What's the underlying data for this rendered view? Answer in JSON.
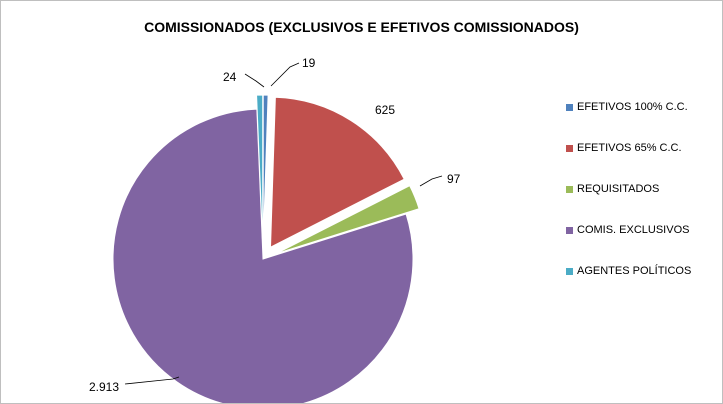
{
  "chart_data": {
    "type": "pie",
    "title": "COMISSIONADOS (EXCLUSIVOS E EFETIVOS COMISSIONADOS)",
    "legend_position": "right",
    "series": [
      {
        "name": "EFETIVOS 100% C.C.",
        "value": 19,
        "label": "19",
        "color": "#4f81bd"
      },
      {
        "name": "EFETIVOS 65% C.C.",
        "value": 625,
        "label": "625",
        "color": "#c0504d"
      },
      {
        "name": "REQUISITADOS",
        "value": 97,
        "label": "97",
        "color": "#9bbb59"
      },
      {
        "name": "COMIS. EXCLUSIVOS",
        "value": 2913,
        "label": "2.913",
        "color": "#8064a2"
      },
      {
        "name": "AGENTES POLÍTICOS",
        "value": 24,
        "label": "24",
        "color": "#4bacc6"
      }
    ]
  }
}
